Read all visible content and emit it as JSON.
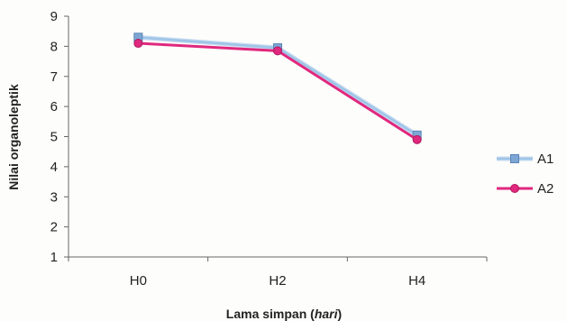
{
  "chart_data": {
    "type": "line",
    "categories": [
      "H0",
      "H2",
      "H4"
    ],
    "series": [
      {
        "name": "A1",
        "values": [
          8.3,
          7.95,
          5.05
        ],
        "color": "#9ec4e8",
        "marker": "square",
        "marker_color": "#7ea6d4"
      },
      {
        "name": "A2",
        "values": [
          8.1,
          7.85,
          4.9
        ],
        "color": "#e0287e",
        "marker": "circle",
        "marker_color": "#e0287e"
      }
    ],
    "title": "",
    "xlabel": "Lama simpan (hari)",
    "xlabel_plain": "Lama simpan (",
    "xlabel_italic": "hari",
    "xlabel_close": ")",
    "ylabel": "Nilai organoleptik",
    "ylim": [
      1,
      9
    ],
    "yticks": [
      "1",
      "2",
      "3",
      "4",
      "5",
      "6",
      "7",
      "8",
      "9"
    ],
    "grid": false,
    "legend_position": "right"
  }
}
